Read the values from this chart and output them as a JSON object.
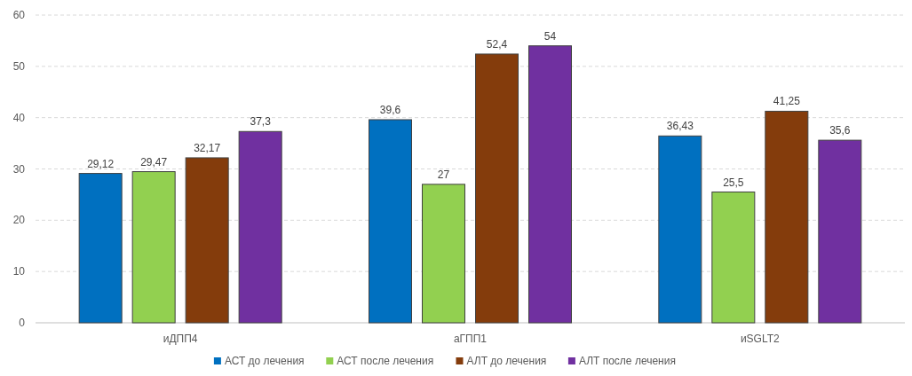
{
  "chart_data": {
    "type": "bar",
    "categories": [
      "иДПП4",
      "аГПП1",
      "иSGLT2"
    ],
    "series": [
      {
        "name": "АСТ до лечения",
        "color": "#0070c0",
        "values": [
          29.12,
          39.6,
          36.43
        ],
        "value_labels": [
          "29,12",
          "39,6",
          "36,43"
        ]
      },
      {
        "name": "АСТ после лечения",
        "color": "#92d050",
        "values": [
          29.47,
          27,
          25.5
        ],
        "value_labels": [
          "29,47",
          "27",
          "25,5"
        ]
      },
      {
        "name": "АЛТ до лечения",
        "color": "#843c0c",
        "values": [
          32.17,
          52.4,
          41.25
        ],
        "value_labels": [
          "32,17",
          "52,4",
          "41,25"
        ]
      },
      {
        "name": "АЛТ после лечения",
        "color": "#7030a0",
        "values": [
          37.3,
          54,
          35.6
        ],
        "value_labels": [
          "37,3",
          "54",
          "35,6"
        ]
      }
    ],
    "ylim": [
      0,
      60
    ],
    "yticks": [
      0,
      10,
      20,
      30,
      40,
      50,
      60
    ],
    "grid": "y",
    "legend": "bottom"
  }
}
